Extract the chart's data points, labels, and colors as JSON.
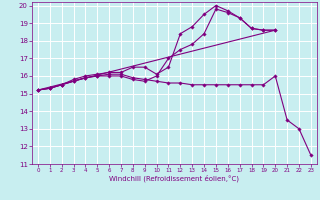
{
  "xlabel": "Windchill (Refroidissement éolien,°C)",
  "bg_color": "#c8eef0",
  "grid_color": "#ffffff",
  "line_color": "#800080",
  "xlim": [
    -0.5,
    23.5
  ],
  "ylim": [
    11,
    20.2
  ],
  "xticks": [
    0,
    1,
    2,
    3,
    4,
    5,
    6,
    7,
    8,
    9,
    10,
    11,
    12,
    13,
    14,
    15,
    16,
    17,
    18,
    19,
    20,
    21,
    22,
    23
  ],
  "yticks": [
    11,
    12,
    13,
    14,
    15,
    16,
    17,
    18,
    19,
    20
  ],
  "lines": [
    {
      "x": [
        0,
        1,
        2,
        3,
        4,
        5,
        6,
        7,
        8,
        9,
        10,
        11,
        12,
        13,
        14,
        15,
        16,
        17,
        18,
        19,
        20,
        21,
        22,
        23
      ],
      "y": [
        15.2,
        15.3,
        15.5,
        15.7,
        15.9,
        16.0,
        16.1,
        16.1,
        15.9,
        15.8,
        15.7,
        15.6,
        15.6,
        15.5,
        15.5,
        15.5,
        15.5,
        15.5,
        15.5,
        15.5,
        16.0,
        13.5,
        13.0,
        11.5
      ],
      "has_markers": true
    },
    {
      "x": [
        0,
        1,
        2,
        3,
        4,
        5,
        6,
        7,
        8,
        9,
        10,
        11,
        12,
        13,
        14,
        15,
        16,
        17,
        18,
        19,
        20
      ],
      "y": [
        15.2,
        15.3,
        15.5,
        15.8,
        16.0,
        16.1,
        16.2,
        16.2,
        16.5,
        16.5,
        16.1,
        16.5,
        18.4,
        18.8,
        19.5,
        20.0,
        19.7,
        19.3,
        18.7,
        18.6,
        18.6
      ],
      "has_markers": true
    },
    {
      "x": [
        0,
        1,
        2,
        3,
        4,
        5,
        6,
        7,
        8,
        9,
        10,
        11,
        12,
        13,
        14,
        15,
        16,
        17,
        18,
        19,
        20
      ],
      "y": [
        15.2,
        15.3,
        15.5,
        15.7,
        15.9,
        16.0,
        16.0,
        16.0,
        15.8,
        15.7,
        16.0,
        17.0,
        17.5,
        17.8,
        18.4,
        19.8,
        19.6,
        19.3,
        18.7,
        18.6,
        18.6
      ],
      "has_markers": true
    },
    {
      "x": [
        0,
        20
      ],
      "y": [
        15.2,
        18.6
      ],
      "has_markers": false
    }
  ]
}
